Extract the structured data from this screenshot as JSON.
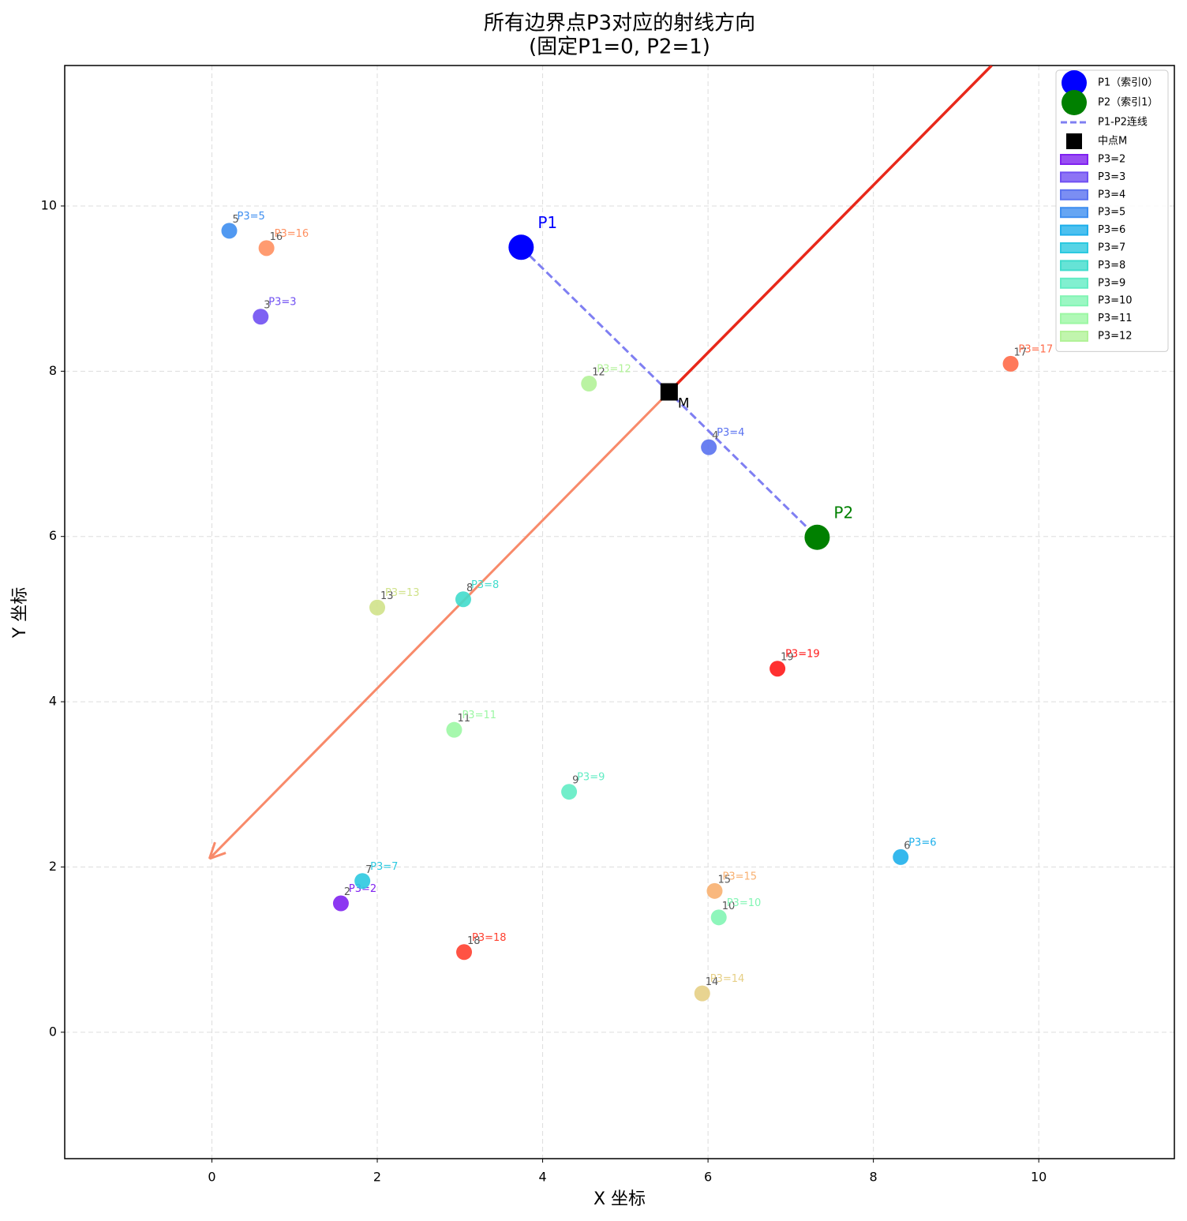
{
  "chart_data": {
    "type": "scatter",
    "title": "所有边界点P3对应的射线方向",
    "subtitle": "(固定P1=0, P2=1)",
    "xlabel": "X 坐标",
    "ylabel": "Y 坐标",
    "xlim": [
      -1.78,
      11.64
    ],
    "ylim": [
      -1.53,
      11.7
    ],
    "xticks": [
      0,
      2,
      4,
      6,
      8,
      10
    ],
    "yticks": [
      0,
      2,
      4,
      6,
      8,
      10
    ],
    "grid": true,
    "legend": "upper right",
    "series": [
      {
        "name": "P1（索引0）",
        "label": "P1",
        "color": "#0000ff",
        "marker": "circle",
        "x": [
          3.74
        ],
        "y": [
          9.5
        ]
      },
      {
        "name": "P2（索引1）",
        "label": "P2",
        "color": "#008000",
        "marker": "circle",
        "x": [
          7.32
        ],
        "y": [
          5.99
        ]
      },
      {
        "name": "中点M",
        "label": "M",
        "color": "#000000",
        "marker": "square",
        "x": [
          5.53
        ],
        "y": [
          7.75
        ]
      }
    ],
    "connector": {
      "name": "P1-P2连线",
      "color": "#7f7ff2",
      "dashed": true
    },
    "rays": [
      {
        "color": "#e8281a",
        "arrow": false,
        "x": [
          5.53,
          9.43
        ],
        "y": [
          7.75,
          11.7
        ]
      },
      {
        "color": "#f88a6a",
        "arrow": true,
        "x": [
          5.53,
          -0.03
        ],
        "y": [
          7.75,
          2.1
        ]
      }
    ],
    "points": [
      {
        "label": "2",
        "tag": "P3=2",
        "color": "#8022f0",
        "legend": true,
        "x": 1.56,
        "y": 1.56
      },
      {
        "label": "3",
        "tag": "P3=3",
        "color": "#7050f2",
        "legend": true,
        "x": 0.59,
        "y": 8.66
      },
      {
        "label": "4",
        "tag": "P3=4",
        "color": "#5a72f0",
        "legend": true,
        "x": 6.01,
        "y": 7.08
      },
      {
        "label": "5",
        "tag": "P3=5",
        "color": "#3e8ef0",
        "legend": true,
        "x": 0.21,
        "y": 9.7
      },
      {
        "label": "6",
        "tag": "P3=6",
        "color": "#1fb0eb",
        "legend": true,
        "x": 8.33,
        "y": 2.12
      },
      {
        "label": "7",
        "tag": "P3=7",
        "color": "#2cc9e0",
        "legend": true,
        "x": 1.82,
        "y": 1.83
      },
      {
        "label": "8",
        "tag": "P3=8",
        "color": "#40dccc",
        "legend": true,
        "x": 3.04,
        "y": 5.24
      },
      {
        "label": "9",
        "tag": "P3=9",
        "color": "#62ecc4",
        "legend": true,
        "x": 4.32,
        "y": 2.91
      },
      {
        "label": "10",
        "tag": "P3=10",
        "color": "#82f5b4",
        "legend": true,
        "x": 6.13,
        "y": 1.39
      },
      {
        "label": "11",
        "tag": "P3=11",
        "color": "#9cf7a4",
        "legend": true,
        "x": 2.93,
        "y": 3.66
      },
      {
        "label": "12",
        "tag": "P3=12",
        "color": "#b2f298",
        "legend": true,
        "x": 4.56,
        "y": 7.85
      },
      {
        "label": "13",
        "tag": "P3=13",
        "color": "#d0e28a",
        "legend": false,
        "x": 2.0,
        "y": 5.14
      },
      {
        "label": "14",
        "tag": "P3=14",
        "color": "#e6cf85",
        "legend": false,
        "x": 5.93,
        "y": 0.47
      },
      {
        "label": "15",
        "tag": "P3=15",
        "color": "#f8b070",
        "legend": false,
        "x": 6.08,
        "y": 1.71
      },
      {
        "label": "16",
        "tag": "P3=16",
        "color": "#ff9060",
        "legend": false,
        "x": 0.66,
        "y": 9.49
      },
      {
        "label": "17",
        "tag": "P3=17",
        "color": "#ff6a48",
        "legend": false,
        "x": 9.66,
        "y": 8.09
      },
      {
        "label": "18",
        "tag": "P3=18",
        "color": "#ff4030",
        "legend": false,
        "x": 3.05,
        "y": 0.97
      },
      {
        "label": "19",
        "tag": "P3=19",
        "color": "#ff1a1a",
        "legend": false,
        "x": 6.84,
        "y": 4.4
      }
    ]
  }
}
